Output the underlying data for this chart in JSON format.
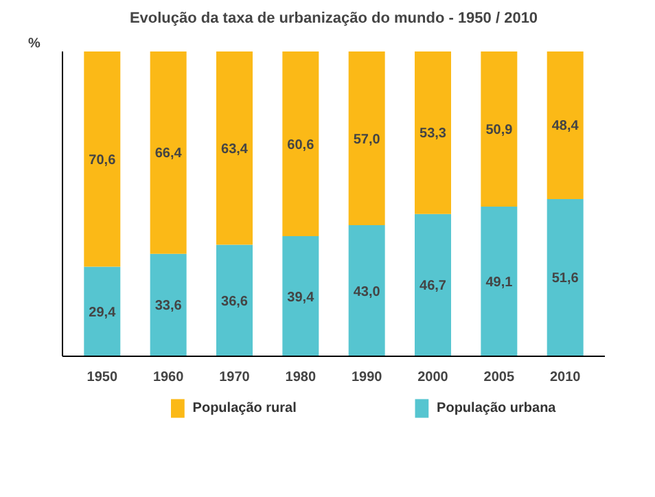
{
  "chart_data": {
    "type": "bar",
    "title": "Evolução da taxa de urbanização do mundo - 1950 / 2010",
    "ylabel": "%",
    "categories": [
      "1950",
      "1960",
      "1970",
      "1980",
      "1990",
      "2000",
      "2005",
      "2010"
    ],
    "stacked": true,
    "ylim": [
      0,
      100
    ],
    "data_labels": true,
    "grid": false,
    "legend": "bottom",
    "series": [
      {
        "name": "População urbana",
        "color": "#56c5d0",
        "values": [
          29.4,
          33.6,
          36.6,
          39.4,
          43.0,
          46.7,
          49.1,
          51.6
        ],
        "value_labels": [
          "29,4",
          "33,6",
          "36,6",
          "39,4",
          "43,0",
          "46,7",
          "49,1",
          "51,6"
        ]
      },
      {
        "name": "População rural",
        "color": "#fbb917",
        "values": [
          70.6,
          66.4,
          63.4,
          60.6,
          57.0,
          53.3,
          50.9,
          48.4
        ],
        "value_labels": [
          "70,6",
          "66,4",
          "63,4",
          "60,6",
          "57,0",
          "53,3",
          "50,9",
          "48,4"
        ]
      }
    ]
  }
}
